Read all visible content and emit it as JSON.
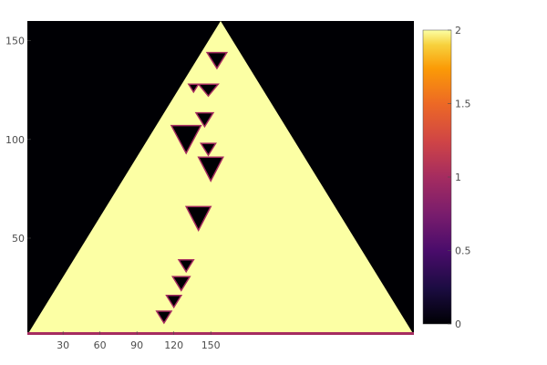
{
  "chart_data": {
    "type": "heatmap",
    "title": "",
    "xlabel": "",
    "ylabel": "",
    "x_ticks": [
      30,
      60,
      90,
      120,
      150
    ],
    "y_ticks": [
      50,
      100,
      150
    ],
    "xlim": [
      1,
      315
    ],
    "ylim": [
      1,
      160
    ],
    "grid": false,
    "colormap": "inferno",
    "colorbar": {
      "range": [
        0,
        2
      ],
      "ticks": [
        "0",
        "0.5",
        "1",
        "1.5",
        "2"
      ]
    },
    "regions": {
      "background_value": 0,
      "triangle_value": 2,
      "triangle_apex": [
        158,
        160
      ],
      "triangle_base": [
        1,
        315
      ],
      "bottom_row_value": 1
    },
    "dark_structures": [
      {
        "x": 130,
        "y": 100,
        "half_width": 12,
        "height": 14
      },
      {
        "x": 112,
        "y": 10,
        "half_width": 6,
        "height": 6
      },
      {
        "x": 120,
        "y": 18,
        "half_width": 6,
        "height": 6
      },
      {
        "x": 126,
        "y": 27,
        "half_width": 7,
        "height": 7
      },
      {
        "x": 130,
        "y": 36,
        "half_width": 6,
        "height": 6
      },
      {
        "x": 140,
        "y": 60,
        "half_width": 10,
        "height": 12
      },
      {
        "x": 150,
        "y": 85,
        "half_width": 10,
        "height": 12
      },
      {
        "x": 148,
        "y": 95,
        "half_width": 6,
        "height": 6
      },
      {
        "x": 145,
        "y": 110,
        "half_width": 7,
        "height": 7
      },
      {
        "x": 148,
        "y": 125,
        "half_width": 8,
        "height": 6
      },
      {
        "x": 155,
        "y": 140,
        "half_width": 8,
        "height": 8
      },
      {
        "x": 136,
        "y": 126,
        "half_width": 4,
        "height": 4
      }
    ]
  }
}
